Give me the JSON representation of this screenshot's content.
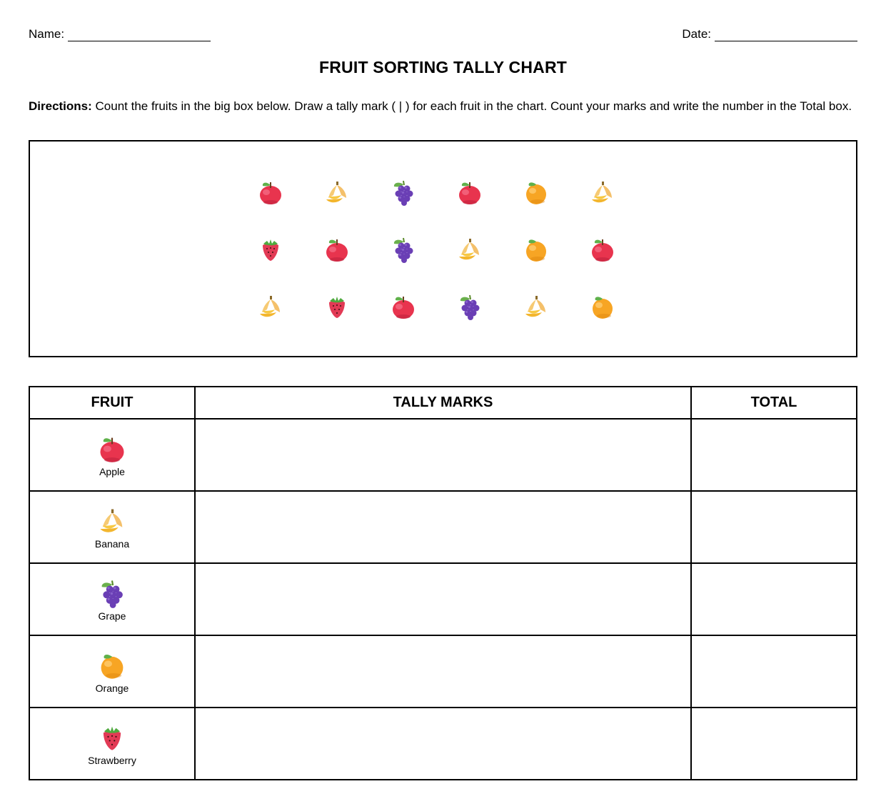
{
  "header": {
    "name_label": "Name:",
    "date_label": "Date:"
  },
  "title": "FRUIT SORTING TALLY CHART",
  "directions": {
    "lead": "Directions:",
    "text": " Count the fruits in the big box below. Draw a tally mark ( | ) for each fruit in the chart. Count your marks and write the number in the Total box."
  },
  "fruit_box": {
    "rows": [
      [
        "apple",
        "banana",
        "grape",
        "apple",
        "orange",
        "banana"
      ],
      [
        "strawberry",
        "apple",
        "grape",
        "banana",
        "orange",
        "apple"
      ],
      [
        "banana",
        "strawberry",
        "apple",
        "grape",
        "banana",
        "orange"
      ]
    ]
  },
  "table": {
    "headers": {
      "fruit": "FRUIT",
      "tally": "TALLY MARKS",
      "total": "TOTAL"
    },
    "rows": [
      {
        "icon": "apple",
        "label": "Apple",
        "tally": "",
        "total": ""
      },
      {
        "icon": "banana",
        "label": "Banana",
        "tally": "",
        "total": ""
      },
      {
        "icon": "grape",
        "label": "Grape",
        "tally": "",
        "total": ""
      },
      {
        "icon": "orange",
        "label": "Orange",
        "tally": "",
        "total": ""
      },
      {
        "icon": "strawberry",
        "label": "Strawberry",
        "tally": "",
        "total": ""
      }
    ]
  }
}
